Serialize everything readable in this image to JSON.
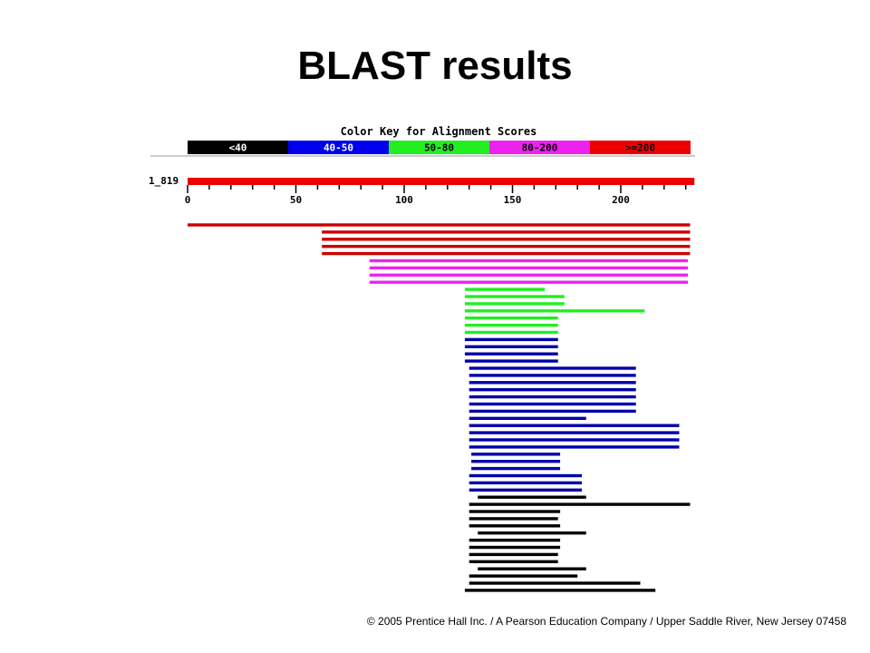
{
  "slide": {
    "title": "BLAST results",
    "copyright": "© 2005 Prentice Hall Inc. / A Pearson Education Company / Upper Saddle River, New Jersey 07458"
  },
  "blast": {
    "color_key_title": "Color Key for Alignment Scores",
    "color_key": [
      {
        "label": "<40",
        "color": "#000000",
        "text_color": "#ffffff"
      },
      {
        "label": "40-50",
        "color": "#0000ee",
        "text_color": "#ffffff"
      },
      {
        "label": "50-80",
        "color": "#22ee22",
        "text_color": "#000000"
      },
      {
        "label": "80-200",
        "color": "#ee22ee",
        "text_color": "#000000"
      },
      {
        "label": ">=200",
        "color": "#ee0000",
        "text_color": "#000000"
      }
    ],
    "query": {
      "name": "1_819",
      "length": 234,
      "color": "#ee0000"
    },
    "ruler": {
      "min": 0,
      "max": 234,
      "major_ticks": [
        0,
        50,
        100,
        150,
        200
      ],
      "minor_step": 10
    },
    "hits": [
      {
        "start": 0,
        "end": 232,
        "color": "#cc0000"
      },
      {
        "start": 62,
        "end": 232,
        "color": "#cc0000"
      },
      {
        "start": 62,
        "end": 232,
        "color": "#cc0000"
      },
      {
        "start": 62,
        "end": 232,
        "color": "#cc0000"
      },
      {
        "start": 62,
        "end": 232,
        "color": "#cc0000"
      },
      {
        "start": 84,
        "end": 231,
        "color": "#ee22ee"
      },
      {
        "start": 84,
        "end": 231,
        "color": "#ee22ee"
      },
      {
        "start": 84,
        "end": 231,
        "color": "#ee22ee"
      },
      {
        "start": 84,
        "end": 231,
        "color": "#ee22ee"
      },
      {
        "start": 128,
        "end": 165,
        "color": "#22ee22"
      },
      {
        "start": 128,
        "end": 174,
        "color": "#22ee22"
      },
      {
        "start": 128,
        "end": 174,
        "color": "#22ee22"
      },
      {
        "start": 128,
        "end": 211,
        "color": "#22ee22"
      },
      {
        "start": 128,
        "end": 171,
        "color": "#22ee22"
      },
      {
        "start": 128,
        "end": 171,
        "color": "#22ee22"
      },
      {
        "start": 128,
        "end": 171,
        "color": "#22ee22"
      },
      {
        "start": 128,
        "end": 171,
        "color": "#0000aa"
      },
      {
        "start": 128,
        "end": 171,
        "color": "#0000aa"
      },
      {
        "start": 128,
        "end": 171,
        "color": "#0000aa"
      },
      {
        "start": 128,
        "end": 171,
        "color": "#0000aa"
      },
      {
        "start": 130,
        "end": 207,
        "color": "#0000aa"
      },
      {
        "start": 130,
        "end": 207,
        "color": "#0000aa"
      },
      {
        "start": 130,
        "end": 207,
        "color": "#0000aa"
      },
      {
        "start": 130,
        "end": 207,
        "color": "#0000aa"
      },
      {
        "start": 130,
        "end": 207,
        "color": "#0000aa"
      },
      {
        "start": 130,
        "end": 207,
        "color": "#0000aa"
      },
      {
        "start": 130,
        "end": 207,
        "color": "#0000aa"
      },
      {
        "start": 130,
        "end": 184,
        "color": "#0000aa"
      },
      {
        "start": 130,
        "end": 227,
        "color": "#0000aa"
      },
      {
        "start": 130,
        "end": 227,
        "color": "#0000aa"
      },
      {
        "start": 130,
        "end": 227,
        "color": "#0000aa"
      },
      {
        "start": 130,
        "end": 227,
        "color": "#0000aa"
      },
      {
        "start": 131,
        "end": 172,
        "color": "#0000aa"
      },
      {
        "start": 131,
        "end": 172,
        "color": "#0000aa"
      },
      {
        "start": 131,
        "end": 172,
        "color": "#0000aa"
      },
      {
        "start": 130,
        "end": 182,
        "color": "#0000aa"
      },
      {
        "start": 130,
        "end": 182,
        "color": "#0000aa"
      },
      {
        "start": 130,
        "end": 182,
        "color": "#0000aa"
      },
      {
        "start": 134,
        "end": 184,
        "color": "#000000"
      },
      {
        "start": 130,
        "end": 232,
        "color": "#000000"
      },
      {
        "start": 130,
        "end": 172,
        "color": "#000000"
      },
      {
        "start": 130,
        "end": 171,
        "color": "#000000"
      },
      {
        "start": 130,
        "end": 172,
        "color": "#000000"
      },
      {
        "start": 134,
        "end": 184,
        "color": "#000000"
      },
      {
        "start": 130,
        "end": 172,
        "color": "#000000"
      },
      {
        "start": 130,
        "end": 172,
        "color": "#000000"
      },
      {
        "start": 130,
        "end": 171,
        "color": "#000000"
      },
      {
        "start": 130,
        "end": 171,
        "color": "#000000"
      },
      {
        "start": 134,
        "end": 184,
        "color": "#000000"
      },
      {
        "start": 130,
        "end": 180,
        "color": "#000000"
      },
      {
        "start": 130,
        "end": 209,
        "color": "#000000"
      },
      {
        "start": 128,
        "end": 216,
        "color": "#000000"
      }
    ]
  }
}
